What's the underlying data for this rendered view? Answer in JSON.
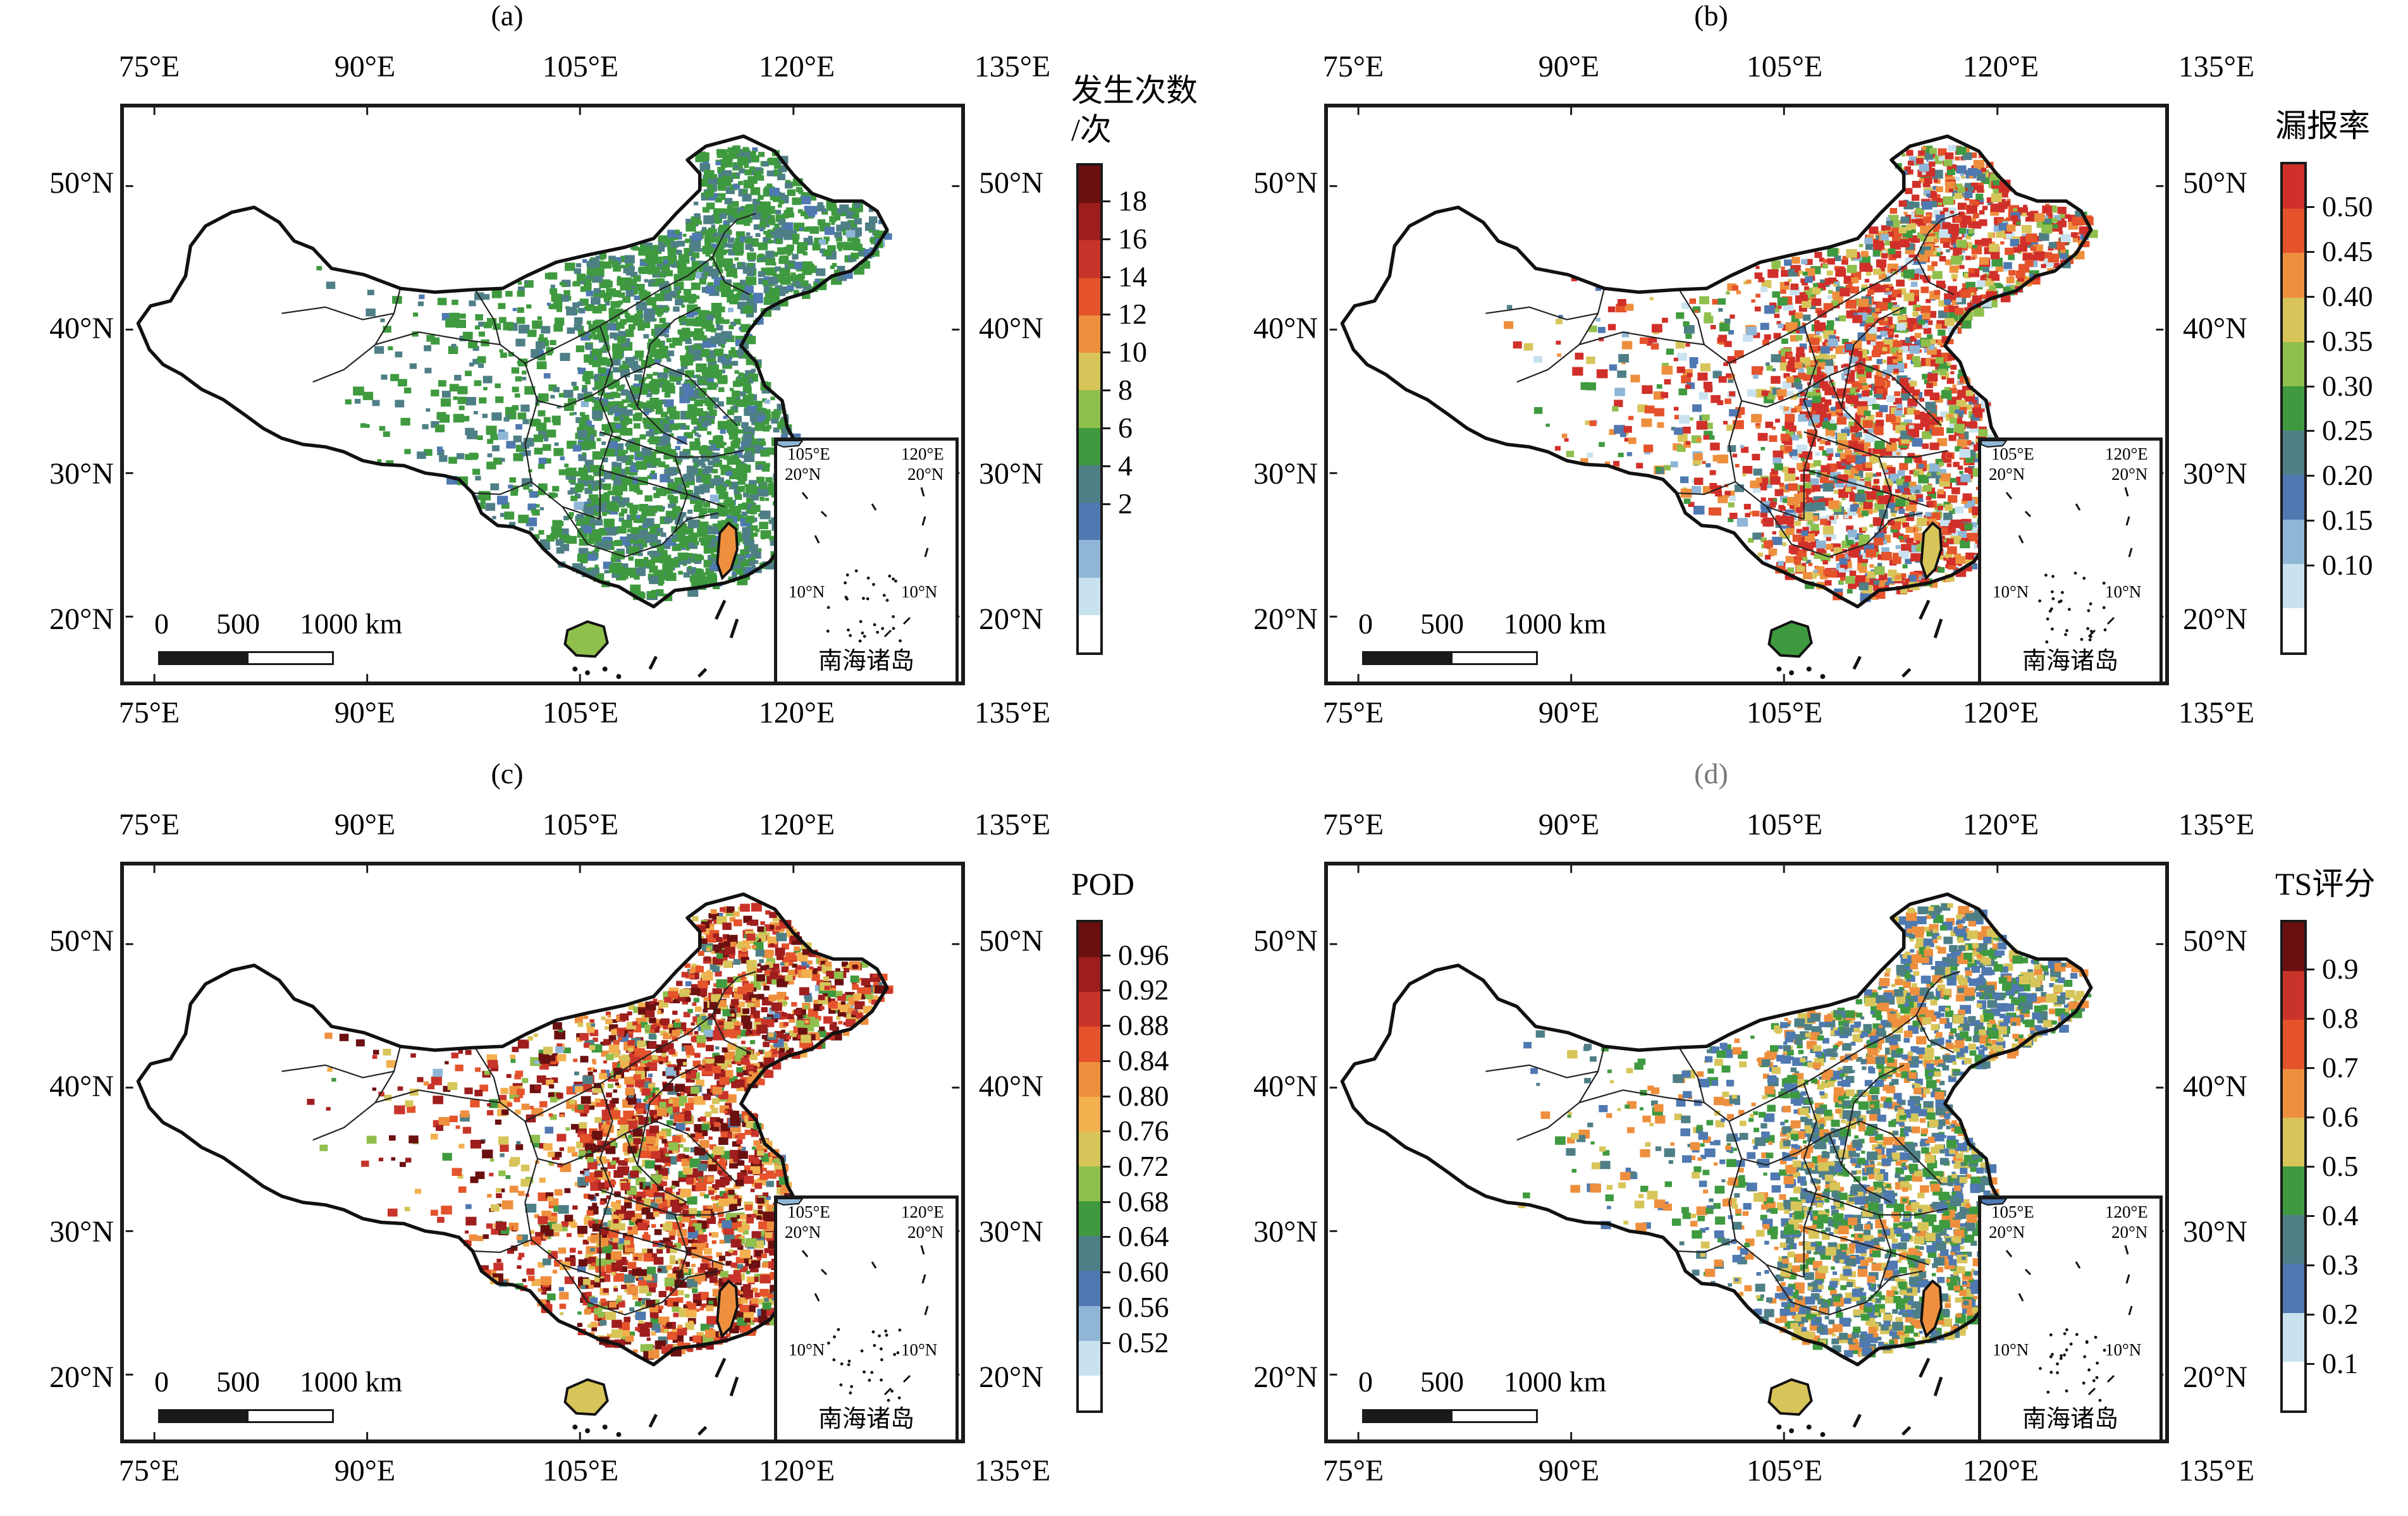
{
  "axis_ticks": {
    "lon": [
      "75°E",
      "90°E",
      "105°E",
      "120°E",
      "135°E"
    ],
    "lat": [
      "50°N",
      "40°N",
      "30°N",
      "20°N"
    ]
  },
  "scale_bar": {
    "zero": "0",
    "mid": "500",
    "end": "1000 km"
  },
  "inset": {
    "lon_labels": [
      "105°E",
      "120°E"
    ],
    "lat_20": "20°N",
    "lat_10": "10°N",
    "title": "南海诸岛"
  },
  "panels": [
    {
      "label": "(a)",
      "legend_title_lines": [
        "发生次数",
        "/次"
      ],
      "colorbar_ticks": [
        "18",
        "16",
        "14",
        "12",
        "10",
        "8",
        "6",
        "4",
        "2"
      ],
      "colors": [
        "#6b1010",
        "#9e1d1d",
        "#c9342a",
        "#e4532b",
        "#ee8f3e",
        "#d8c55a",
        "#8fbf4c",
        "#3f9a3f",
        "#4f7f86",
        "#4f79b0",
        "#8fb6d6",
        "#c9e2ef",
        "#ffffff"
      ]
    },
    {
      "label": "(b)",
      "legend_title_lines": [
        "漏报率"
      ],
      "colorbar_ticks": [
        "0.50",
        "0.45",
        "0.40",
        "0.35",
        "0.30",
        "0.25",
        "0.20",
        "0.15",
        "0.10"
      ],
      "colors": [
        "#d1302a",
        "#e4532b",
        "#ee8f3e",
        "#d8c55a",
        "#8fbf4c",
        "#3f9a3f",
        "#4f7f86",
        "#4f79b0",
        "#8fb6d6",
        "#c9e2ef",
        "#ffffff"
      ]
    },
    {
      "label": "(c)",
      "legend_title_lines": [
        "POD"
      ],
      "colorbar_ticks": [
        "0.96",
        "0.92",
        "0.88",
        "0.84",
        "0.80",
        "0.76",
        "0.72",
        "0.68",
        "0.64",
        "0.60",
        "0.56",
        "0.52"
      ],
      "colors": [
        "#6b1010",
        "#9e1d1d",
        "#c9342a",
        "#e4532b",
        "#ee8f3e",
        "#f2b04e",
        "#d8c55a",
        "#8fbf4c",
        "#3f9a3f",
        "#4f7f86",
        "#4f79b0",
        "#8fb6d6",
        "#c9e2ef",
        "#ffffff"
      ]
    },
    {
      "label": "(d)",
      "legend_title_lines": [
        "TS评分"
      ],
      "colorbar_ticks": [
        "0.9",
        "0.8",
        "0.7",
        "0.6",
        "0.5",
        "0.4",
        "0.3",
        "0.2",
        "0.1"
      ],
      "colors": [
        "#6b1010",
        "#c9342a",
        "#e4532b",
        "#ee8f3e",
        "#d8c55a",
        "#3f9a3f",
        "#4f7f86",
        "#4f79b0",
        "#c9e2ef",
        "#ffffff"
      ]
    }
  ]
}
